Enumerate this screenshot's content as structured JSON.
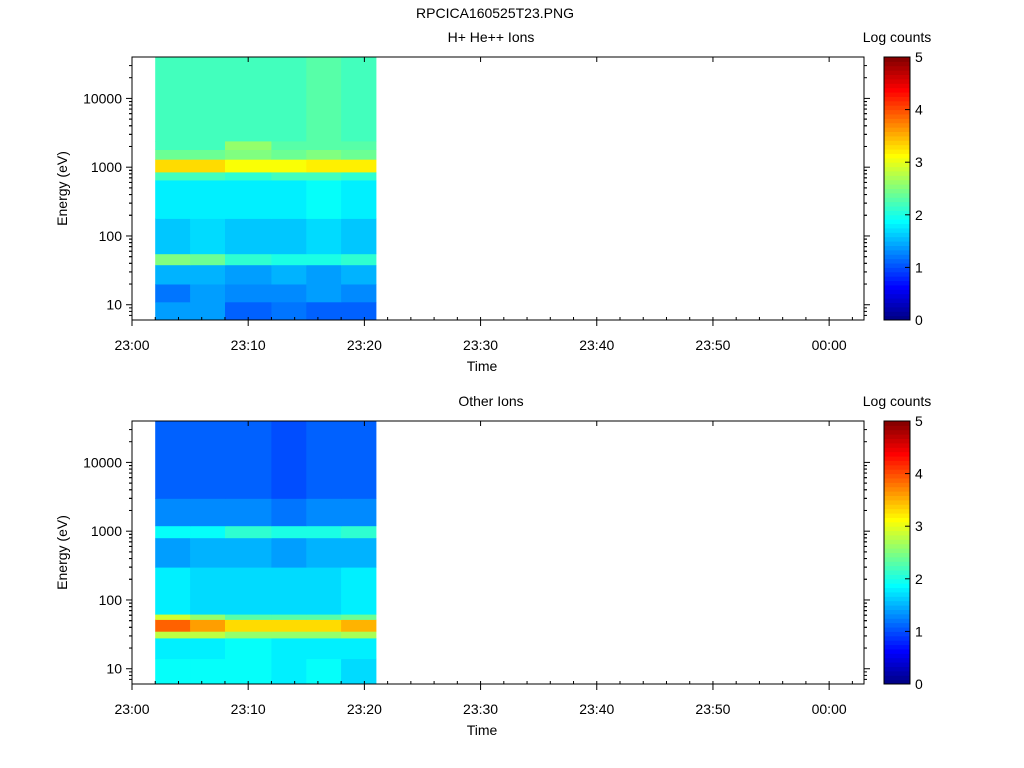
{
  "figure": {
    "title": "RPCICA160525T23.PNG"
  },
  "colorbar": {
    "label": "Log counts",
    "range": [
      0,
      5
    ],
    "ticks": [
      "0",
      "1",
      "2",
      "3",
      "4",
      "5"
    ],
    "colormap": "jet"
  },
  "chart_data": [
    {
      "type": "heatmap",
      "title": "H+ He++ Ions",
      "xlabel": "Time",
      "ylabel": "Energy (eV)",
      "yscale": "log",
      "ylim": [
        6,
        40000
      ],
      "xlim": [
        "23:00",
        "00:03"
      ],
      "x_ticks": [
        "23:00",
        "23:10",
        "23:20",
        "23:30",
        "23:40",
        "23:50",
        "00:00"
      ],
      "y_ticks": [
        "10",
        "100",
        "1000",
        "10000"
      ],
      "time_bins_start": [
        "23:02",
        "23:05",
        "23:08",
        "23:12",
        "23:15",
        "23:18"
      ],
      "time_bins_end": "23:21",
      "energy_bands": [
        {
          "from": 6,
          "to": 11,
          "log_counts": [
            1.4,
            1.4,
            1.1,
            1.2,
            1.1,
            1.1
          ]
        },
        {
          "from": 11,
          "to": 20,
          "log_counts": [
            1.2,
            1.4,
            1.3,
            1.3,
            1.4,
            1.3
          ]
        },
        {
          "from": 20,
          "to": 38,
          "log_counts": [
            1.5,
            1.5,
            1.4,
            1.5,
            1.4,
            1.5
          ]
        },
        {
          "from": 38,
          "to": 55,
          "log_counts": [
            2.5,
            2.4,
            2.1,
            2.0,
            2.0,
            2.1
          ]
        },
        {
          "from": 55,
          "to": 180,
          "log_counts": [
            1.6,
            1.7,
            1.6,
            1.6,
            1.7,
            1.6
          ]
        },
        {
          "from": 180,
          "to": 650,
          "log_counts": [
            1.8,
            1.8,
            1.8,
            1.8,
            1.9,
            1.8
          ]
        },
        {
          "from": 650,
          "to": 850,
          "log_counts": [
            2.2,
            2.2,
            2.1,
            2.2,
            2.2,
            2.1
          ]
        },
        {
          "from": 850,
          "to": 1300,
          "log_counts": [
            3.3,
            3.3,
            3.1,
            3.1,
            3.2,
            3.2
          ]
        },
        {
          "from": 1300,
          "to": 1800,
          "log_counts": [
            2.4,
            2.4,
            2.5,
            2.4,
            2.5,
            2.4
          ]
        },
        {
          "from": 1800,
          "to": 2400,
          "log_counts": [
            2.2,
            2.2,
            2.6,
            2.3,
            2.3,
            2.3
          ]
        },
        {
          "from": 2400,
          "to": 40000,
          "log_counts": [
            2.2,
            2.2,
            2.2,
            2.2,
            2.3,
            2.2
          ]
        }
      ],
      "colorbar_label": "Log counts"
    },
    {
      "type": "heatmap",
      "title": "Other Ions",
      "xlabel": "Time",
      "ylabel": "Energy (eV)",
      "yscale": "log",
      "ylim": [
        6,
        40000
      ],
      "xlim": [
        "23:00",
        "00:03"
      ],
      "x_ticks": [
        "23:00",
        "23:10",
        "23:20",
        "23:30",
        "23:40",
        "23:50",
        "00:00"
      ],
      "y_ticks": [
        "10",
        "100",
        "1000",
        "10000"
      ],
      "time_bins_start": [
        "23:02",
        "23:05",
        "23:08",
        "23:12",
        "23:15",
        "23:18"
      ],
      "time_bins_end": "23:21",
      "energy_bands": [
        {
          "from": 6,
          "to": 14,
          "log_counts": [
            1.9,
            1.9,
            1.9,
            1.8,
            1.9,
            1.7
          ]
        },
        {
          "from": 14,
          "to": 28,
          "log_counts": [
            1.8,
            1.8,
            1.9,
            1.8,
            1.8,
            1.8
          ]
        },
        {
          "from": 28,
          "to": 35,
          "log_counts": [
            2.8,
            2.8,
            2.6,
            2.6,
            2.6,
            2.7
          ]
        },
        {
          "from": 35,
          "to": 52,
          "log_counts": [
            3.9,
            3.6,
            3.3,
            3.3,
            3.3,
            3.5
          ]
        },
        {
          "from": 52,
          "to": 62,
          "log_counts": [
            2.9,
            2.6,
            2.3,
            2.3,
            2.3,
            2.4
          ]
        },
        {
          "from": 62,
          "to": 300,
          "log_counts": [
            1.8,
            1.7,
            1.7,
            1.7,
            1.7,
            1.8
          ]
        },
        {
          "from": 300,
          "to": 800,
          "log_counts": [
            1.4,
            1.5,
            1.5,
            1.4,
            1.5,
            1.5
          ]
        },
        {
          "from": 800,
          "to": 1200,
          "log_counts": [
            1.9,
            1.9,
            2.1,
            2.0,
            2.0,
            2.1
          ]
        },
        {
          "from": 1200,
          "to": 3000,
          "log_counts": [
            1.3,
            1.3,
            1.3,
            1.2,
            1.3,
            1.3
          ]
        },
        {
          "from": 3000,
          "to": 40000,
          "log_counts": [
            1.1,
            1.1,
            1.1,
            1.0,
            1.1,
            1.1
          ]
        }
      ],
      "colorbar_label": "Log counts"
    }
  ]
}
